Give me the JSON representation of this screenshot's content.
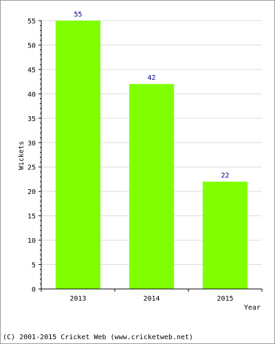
{
  "chart_data": {
    "type": "bar",
    "categories": [
      "2013",
      "2014",
      "2015"
    ],
    "values": [
      55,
      42,
      22
    ],
    "data_labels": [
      "55",
      "42",
      "22"
    ],
    "title": "",
    "xlabel": "Year",
    "ylabel": "Wickets",
    "ylim": [
      0,
      55
    ],
    "yticks": [
      0,
      5,
      10,
      15,
      20,
      25,
      30,
      35,
      40,
      45,
      50,
      55
    ],
    "grid": true,
    "bar_color": "#80ff00",
    "label_color": "#000080",
    "grid_color": "#dcdcdc"
  },
  "footer": {
    "text": "(C) 2001-2015 Cricket Web (www.cricketweb.net)"
  }
}
